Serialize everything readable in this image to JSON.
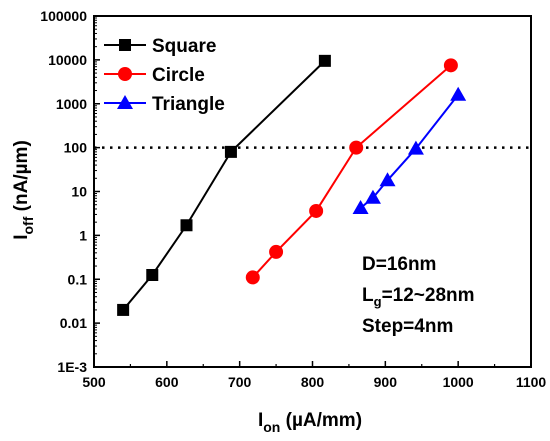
{
  "chart_data": {
    "type": "scatter",
    "xlabel": {
      "main": "I",
      "sub": "on",
      "unit": " (µA/mm)"
    },
    "ylabel": {
      "main": "I",
      "sub": "off",
      "unit": " (nA/µm)"
    },
    "xlim": [
      500,
      1100
    ],
    "ylim": [
      0.001,
      100000
    ],
    "yscale": "log",
    "x_ticks": [
      500,
      600,
      700,
      800,
      900,
      1000,
      1100
    ],
    "x_tick_labels": [
      "500",
      "600",
      "700",
      "800",
      "900",
      "1000",
      "1100"
    ],
    "y_ticks": [
      0.001,
      0.01,
      0.1,
      1,
      10,
      100,
      1000,
      10000,
      100000
    ],
    "y_tick_labels": [
      "1E-3",
      "0.01",
      "0.1",
      "1",
      "10",
      "100",
      "1000",
      "10000",
      "100000"
    ],
    "reference_line": {
      "y": 100,
      "style": "dotted"
    },
    "legend_position": "top-left",
    "series": [
      {
        "name": "Square",
        "marker": "square",
        "color": "#000000",
        "x": [
          540,
          580,
          627,
          688,
          817
        ],
        "y": [
          0.02,
          0.125,
          1.7,
          80,
          9500
        ]
      },
      {
        "name": "Circle",
        "marker": "circle",
        "color": "#ff0000",
        "x": [
          718,
          750,
          805,
          860,
          990
        ],
        "y": [
          0.11,
          0.42,
          3.6,
          100,
          7500
        ]
      },
      {
        "name": "Triangle",
        "marker": "triangle",
        "color": "#0000ff",
        "x": [
          866,
          883,
          903,
          942,
          1000
        ],
        "y": [
          4.2,
          7.2,
          18,
          95,
          1600
        ]
      }
    ],
    "annotations": [
      {
        "id": "d",
        "main": "D=16nm",
        "sub": "",
        "rest": ""
      },
      {
        "id": "lg",
        "main": "L",
        "sub": "g",
        "rest": "=12~28nm"
      },
      {
        "id": "step",
        "main": "Step=4nm",
        "sub": "",
        "rest": ""
      }
    ]
  }
}
